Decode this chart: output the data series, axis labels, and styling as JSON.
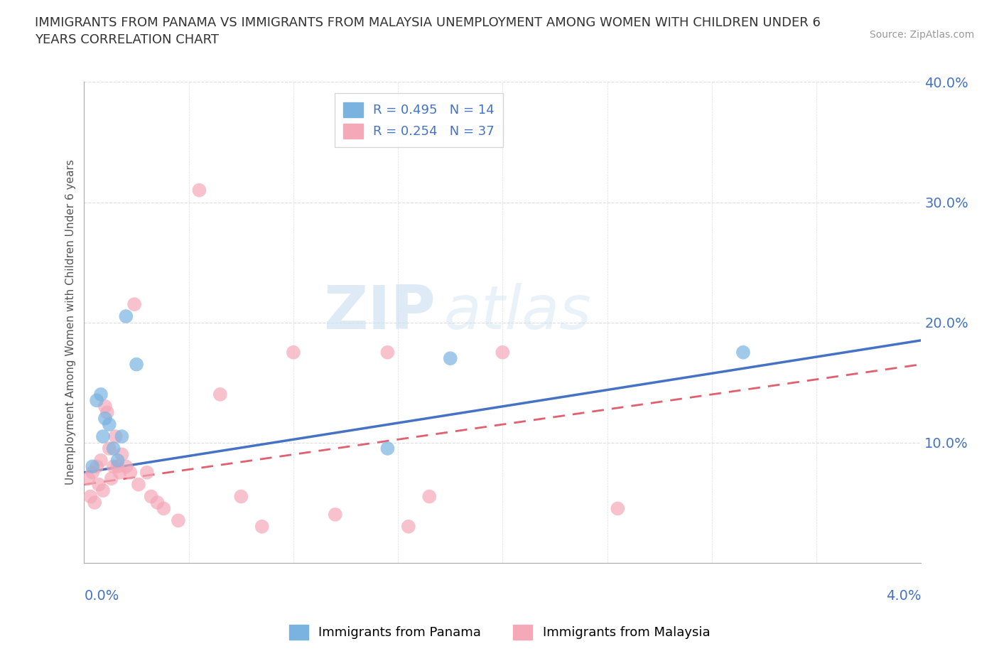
{
  "title": "IMMIGRANTS FROM PANAMA VS IMMIGRANTS FROM MALAYSIA UNEMPLOYMENT AMONG WOMEN WITH CHILDREN UNDER 6\nYEARS CORRELATION CHART",
  "source": "Source: ZipAtlas.com",
  "ylabel": "Unemployment Among Women with Children Under 6 years",
  "xlim": [
    0.0,
    4.0
  ],
  "ylim": [
    0.0,
    40.0
  ],
  "yticks": [
    10.0,
    20.0,
    30.0,
    40.0
  ],
  "xticks": [
    0.0,
    0.5,
    1.0,
    1.5,
    2.0,
    2.5,
    3.0,
    3.5,
    4.0
  ],
  "panama_color": "#7ab3e0",
  "malaysia_color": "#f4a8b8",
  "panama_line_color": "#4472c4",
  "malaysia_line_color": "#e06070",
  "panama_label": "Immigrants from Panama",
  "malaysia_label": "Immigrants from Malaysia",
  "panama_R": 0.495,
  "panama_N": 14,
  "malaysia_R": 0.254,
  "malaysia_N": 37,
  "panama_scatter_x": [
    0.04,
    0.06,
    0.08,
    0.09,
    0.1,
    0.12,
    0.14,
    0.16,
    0.18,
    0.2,
    0.25,
    1.45,
    1.75,
    3.15
  ],
  "panama_scatter_y": [
    8.0,
    13.5,
    14.0,
    10.5,
    12.0,
    11.5,
    9.5,
    8.5,
    10.5,
    20.5,
    16.5,
    9.5,
    17.0,
    17.5
  ],
  "malaysia_scatter_x": [
    0.02,
    0.03,
    0.04,
    0.05,
    0.06,
    0.07,
    0.08,
    0.09,
    0.1,
    0.11,
    0.12,
    0.13,
    0.14,
    0.15,
    0.16,
    0.17,
    0.18,
    0.2,
    0.22,
    0.24,
    0.26,
    0.3,
    0.32,
    0.35,
    0.38,
    0.45,
    0.55,
    0.65,
    0.75,
    0.85,
    1.0,
    1.2,
    1.45,
    1.55,
    1.65,
    2.0,
    2.55
  ],
  "malaysia_scatter_y": [
    7.0,
    5.5,
    7.5,
    5.0,
    8.0,
    6.5,
    8.5,
    6.0,
    13.0,
    12.5,
    9.5,
    7.0,
    8.0,
    10.5,
    8.0,
    7.5,
    9.0,
    8.0,
    7.5,
    21.5,
    6.5,
    7.5,
    5.5,
    5.0,
    4.5,
    3.5,
    31.0,
    14.0,
    5.5,
    3.0,
    17.5,
    4.0,
    17.5,
    3.0,
    5.5,
    17.5,
    4.5
  ],
  "panama_line_x0": 0.0,
  "panama_line_y0": 7.5,
  "panama_line_x1": 4.0,
  "panama_line_y1": 18.5,
  "malaysia_line_x0": 0.0,
  "malaysia_line_y0": 6.5,
  "malaysia_line_x1": 4.0,
  "malaysia_line_y1": 16.5,
  "watermark_zip": "ZIP",
  "watermark_atlas": "atlas",
  "background_color": "#ffffff",
  "grid_color": "#dddddd"
}
